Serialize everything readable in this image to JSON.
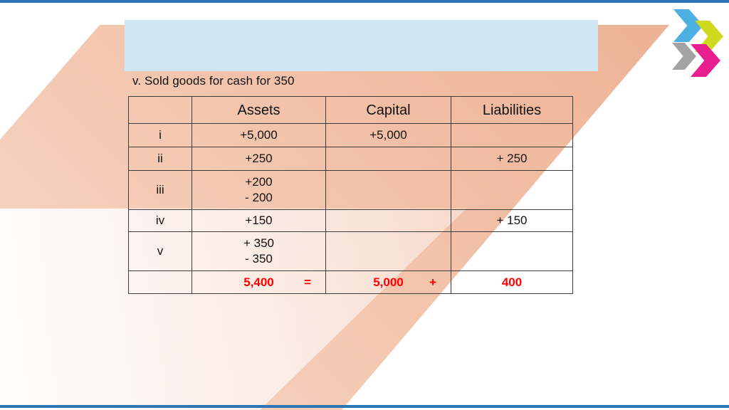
{
  "slide": {
    "title_placeholder": "",
    "caption": "v. Sold goods for cash for 350"
  },
  "table": {
    "headers": [
      "",
      "Assets",
      "Capital",
      "Liabilities"
    ],
    "rows": [
      {
        "label": "i",
        "assets": [
          "+5,000"
        ],
        "capital": "+5,000",
        "liabilities": ""
      },
      {
        "label": "ii",
        "assets": [
          "+250"
        ],
        "capital": "",
        "liabilities": "+ 250"
      },
      {
        "label": "iii",
        "assets": [
          "+200",
          "- 200"
        ],
        "capital": "",
        "liabilities": ""
      },
      {
        "label": "iv",
        "assets": [
          "+150"
        ],
        "capital": "",
        "liabilities": "+ 150"
      },
      {
        "label": "v",
        "assets": [
          "+ 350",
          "- 350"
        ],
        "capital": "",
        "liabilities": ""
      }
    ],
    "totals": {
      "assets_value": "5,400",
      "assets_operator": "=",
      "capital_value": "5,000",
      "capital_operator": "+",
      "liabilities_value": "400"
    }
  },
  "colors": {
    "peach": "#f3c5ad",
    "title_bar_blue": "#cfe7f3",
    "accent_blue": "#2e75b6",
    "total_red": "#ff0000",
    "table_border": "#3d3d3d",
    "logo_blue": "#4db0e2",
    "logo_yellow": "#cfda1e",
    "logo_gray": "#a3a3a3",
    "logo_pink": "#ea1f8f"
  },
  "logo": {
    "chevrons": [
      "blue-chevron-icon",
      "yellow-chevron-icon",
      "gray-chevron-icon",
      "pink-chevron-icon"
    ]
  }
}
